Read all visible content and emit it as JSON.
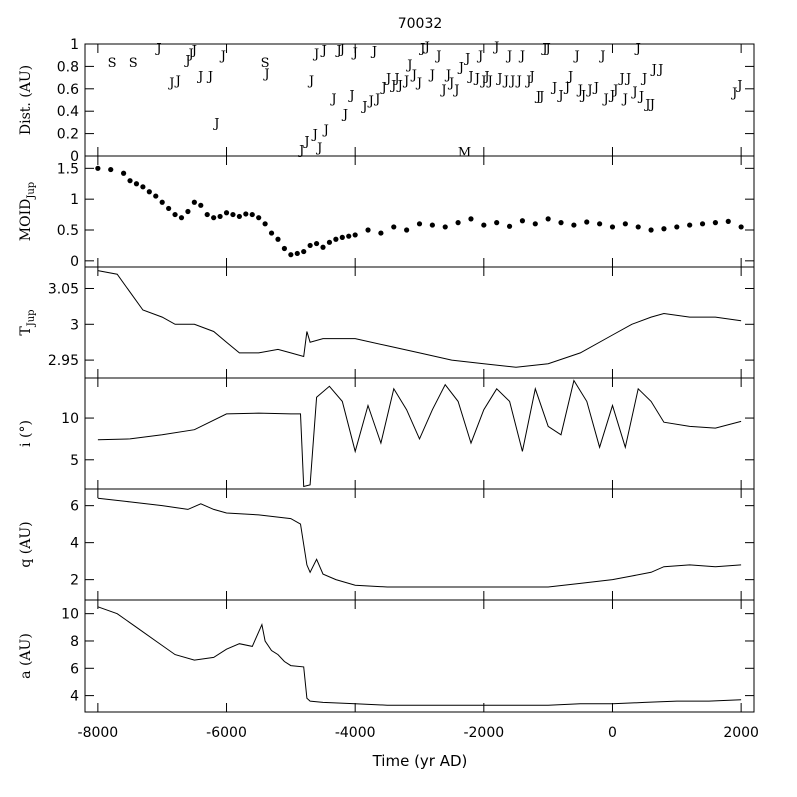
{
  "chart_data": {
    "type": "line",
    "title": "70032",
    "xlabel": "Time (yr AD)",
    "xlim": [
      -8200,
      2200
    ],
    "x_ticks": [
      -8000,
      -6000,
      -4000,
      -2000,
      0,
      2000
    ],
    "panels": [
      {
        "id": "dist",
        "type": "scatter",
        "ylabel": "Dist. (AU)",
        "ylim": [
          0,
          1
        ],
        "y_ticks": [
          0,
          0.2,
          0.4,
          0.6,
          0.8,
          1
        ],
        "y_tick_labels": [
          "0",
          "0.2",
          "0.4",
          "0.6",
          "0.8",
          "1"
        ],
        "encounters": [
          {
            "x": -7780,
            "y": 0.84,
            "body": "S"
          },
          {
            "x": -7450,
            "y": 0.84,
            "body": "S"
          },
          {
            "x": -7050,
            "y": 0.97,
            "body": "J"
          },
          {
            "x": -6850,
            "y": 0.66,
            "body": "J"
          },
          {
            "x": -6750,
            "y": 0.68,
            "body": "J"
          },
          {
            "x": -6600,
            "y": 0.86,
            "body": "J"
          },
          {
            "x": -6550,
            "y": 0.92,
            "body": "J"
          },
          {
            "x": -6500,
            "y": 0.95,
            "body": "J"
          },
          {
            "x": -6400,
            "y": 0.72,
            "body": "J"
          },
          {
            "x": -6250,
            "y": 0.72,
            "body": "J"
          },
          {
            "x": -6150,
            "y": 0.3,
            "body": "J"
          },
          {
            "x": -6050,
            "y": 0.9,
            "body": "J"
          },
          {
            "x": -5400,
            "y": 0.84,
            "body": "S"
          },
          {
            "x": -5370,
            "y": 0.74,
            "body": "J"
          },
          {
            "x": -4830,
            "y": 0.06,
            "body": "J"
          },
          {
            "x": -4750,
            "y": 0.14,
            "body": "J"
          },
          {
            "x": -4680,
            "y": 0.68,
            "body": "J"
          },
          {
            "x": -4620,
            "y": 0.2,
            "body": "J"
          },
          {
            "x": -4600,
            "y": 0.92,
            "body": "J"
          },
          {
            "x": -4550,
            "y": 0.08,
            "body": "J"
          },
          {
            "x": -4480,
            "y": 0.95,
            "body": "J"
          },
          {
            "x": -4450,
            "y": 0.24,
            "body": "J"
          },
          {
            "x": -4330,
            "y": 0.52,
            "body": "J"
          },
          {
            "x": -4250,
            "y": 0.95,
            "body": "J"
          },
          {
            "x": -4200,
            "y": 0.96,
            "body": "J"
          },
          {
            "x": -4150,
            "y": 0.38,
            "body": "J"
          },
          {
            "x": -4050,
            "y": 0.55,
            "body": "J"
          },
          {
            "x": -4000,
            "y": 0.93,
            "body": "J"
          },
          {
            "x": -3850,
            "y": 0.45,
            "body": "J"
          },
          {
            "x": -3750,
            "y": 0.5,
            "body": "J"
          },
          {
            "x": -3700,
            "y": 0.94,
            "body": "J"
          },
          {
            "x": -3650,
            "y": 0.52,
            "body": "J"
          },
          {
            "x": -3550,
            "y": 0.62,
            "body": "J"
          },
          {
            "x": -3480,
            "y": 0.7,
            "body": "J"
          },
          {
            "x": -3400,
            "y": 0.64,
            "body": "J"
          },
          {
            "x": -3350,
            "y": 0.7,
            "body": "J"
          },
          {
            "x": -3300,
            "y": 0.64,
            "body": "J"
          },
          {
            "x": -3200,
            "y": 0.68,
            "body": "J"
          },
          {
            "x": -3150,
            "y": 0.82,
            "body": "J"
          },
          {
            "x": -3080,
            "y": 0.73,
            "body": "J"
          },
          {
            "x": -3000,
            "y": 0.66,
            "body": "J"
          },
          {
            "x": -2950,
            "y": 0.97,
            "body": "J"
          },
          {
            "x": -2880,
            "y": 0.98,
            "body": "J"
          },
          {
            "x": -2800,
            "y": 0.73,
            "body": "J"
          },
          {
            "x": -2700,
            "y": 0.9,
            "body": "J"
          },
          {
            "x": -2620,
            "y": 0.6,
            "body": "J"
          },
          {
            "x": -2550,
            "y": 0.73,
            "body": "J"
          },
          {
            "x": -2500,
            "y": 0.66,
            "body": "J"
          },
          {
            "x": -2420,
            "y": 0.6,
            "body": "J"
          },
          {
            "x": -2350,
            "y": 0.8,
            "body": "J"
          },
          {
            "x": -2300,
            "y": 0.04,
            "body": "M"
          },
          {
            "x": -2250,
            "y": 0.88,
            "body": "J"
          },
          {
            "x": -2200,
            "y": 0.72,
            "body": "J"
          },
          {
            "x": -2100,
            "y": 0.7,
            "body": "J"
          },
          {
            "x": -2050,
            "y": 0.9,
            "body": "J"
          },
          {
            "x": -2000,
            "y": 0.68,
            "body": "J"
          },
          {
            "x": -1950,
            "y": 0.72,
            "body": "J"
          },
          {
            "x": -1900,
            "y": 0.68,
            "body": "J"
          },
          {
            "x": -1800,
            "y": 0.98,
            "body": "J"
          },
          {
            "x": -1750,
            "y": 0.7,
            "body": "J"
          },
          {
            "x": -1650,
            "y": 0.68,
            "body": "J"
          },
          {
            "x": -1600,
            "y": 0.9,
            "body": "J"
          },
          {
            "x": -1550,
            "y": 0.68,
            "body": "J"
          },
          {
            "x": -1450,
            "y": 0.68,
            "body": "J"
          },
          {
            "x": -1400,
            "y": 0.9,
            "body": "J"
          },
          {
            "x": -1300,
            "y": 0.68,
            "body": "J"
          },
          {
            "x": -1250,
            "y": 0.72,
            "body": "J"
          },
          {
            "x": -1150,
            "y": 0.54,
            "body": "J"
          },
          {
            "x": -1100,
            "y": 0.54,
            "body": "J"
          },
          {
            "x": -1050,
            "y": 0.97,
            "body": "J"
          },
          {
            "x": -1000,
            "y": 0.97,
            "body": "J"
          },
          {
            "x": -900,
            "y": 0.62,
            "body": "J"
          },
          {
            "x": -800,
            "y": 0.55,
            "body": "J"
          },
          {
            "x": -700,
            "y": 0.62,
            "body": "J"
          },
          {
            "x": -650,
            "y": 0.72,
            "body": "J"
          },
          {
            "x": -550,
            "y": 0.9,
            "body": "J"
          },
          {
            "x": -500,
            "y": 0.6,
            "body": "J"
          },
          {
            "x": -450,
            "y": 0.55,
            "body": "J"
          },
          {
            "x": -350,
            "y": 0.6,
            "body": "J"
          },
          {
            "x": -250,
            "y": 0.62,
            "body": "J"
          },
          {
            "x": -150,
            "y": 0.9,
            "body": "J"
          },
          {
            "x": -100,
            "y": 0.52,
            "body": "J"
          },
          {
            "x": 0,
            "y": 0.55,
            "body": "J"
          },
          {
            "x": 50,
            "y": 0.6,
            "body": "J"
          },
          {
            "x": 150,
            "y": 0.7,
            "body": "J"
          },
          {
            "x": 200,
            "y": 0.52,
            "body": "J"
          },
          {
            "x": 250,
            "y": 0.7,
            "body": "J"
          },
          {
            "x": 350,
            "y": 0.58,
            "body": "J"
          },
          {
            "x": 400,
            "y": 0.97,
            "body": "J"
          },
          {
            "x": 450,
            "y": 0.54,
            "body": "J"
          },
          {
            "x": 500,
            "y": 0.7,
            "body": "J"
          },
          {
            "x": 550,
            "y": 0.47,
            "body": "J"
          },
          {
            "x": 620,
            "y": 0.47,
            "body": "J"
          },
          {
            "x": 650,
            "y": 0.78,
            "body": "J"
          },
          {
            "x": 750,
            "y": 0.78,
            "body": "J"
          },
          {
            "x": 1900,
            "y": 0.57,
            "body": "J"
          },
          {
            "x": 1980,
            "y": 0.64,
            "body": "J"
          }
        ]
      },
      {
        "id": "moid",
        "type": "scatter",
        "ylabel": "MOID",
        "ylabel_sub": "Jup",
        "ylim": [
          -0.1,
          1.7
        ],
        "y_ticks": [
          0,
          0.5,
          1,
          1.5
        ],
        "y_tick_labels": [
          "0",
          "0.5",
          "1",
          "1.5"
        ],
        "x": [
          -8000,
          -7800,
          -7600,
          -7500,
          -7400,
          -7300,
          -7200,
          -7100,
          -7000,
          -6900,
          -6800,
          -6700,
          -6600,
          -6500,
          -6400,
          -6300,
          -6200,
          -6100,
          -6000,
          -5900,
          -5800,
          -5700,
          -5600,
          -5500,
          -5400,
          -5300,
          -5200,
          -5100,
          -5000,
          -4900,
          -4800,
          -4700,
          -4600,
          -4500,
          -4400,
          -4300,
          -4200,
          -4100,
          -4000,
          -3800,
          -3600,
          -3400,
          -3200,
          -3000,
          -2800,
          -2600,
          -2400,
          -2200,
          -2000,
          -1800,
          -1600,
          -1400,
          -1200,
          -1000,
          -800,
          -600,
          -400,
          -200,
          0,
          200,
          400,
          600,
          800,
          1000,
          1200,
          1400,
          1600,
          1800,
          2000
        ],
        "values": [
          1.5,
          1.48,
          1.42,
          1.3,
          1.25,
          1.2,
          1.12,
          1.05,
          0.95,
          0.85,
          0.75,
          0.7,
          0.8,
          0.95,
          0.9,
          0.75,
          0.7,
          0.72,
          0.78,
          0.75,
          0.72,
          0.76,
          0.75,
          0.7,
          0.6,
          0.45,
          0.35,
          0.2,
          0.1,
          0.12,
          0.15,
          0.25,
          0.28,
          0.22,
          0.3,
          0.35,
          0.38,
          0.4,
          0.42,
          0.5,
          0.45,
          0.55,
          0.5,
          0.6,
          0.58,
          0.55,
          0.62,
          0.68,
          0.58,
          0.62,
          0.56,
          0.65,
          0.6,
          0.68,
          0.62,
          0.58,
          0.63,
          0.6,
          0.55,
          0.6,
          0.55,
          0.5,
          0.52,
          0.55,
          0.58,
          0.6,
          0.62,
          0.64,
          0.55
        ]
      },
      {
        "id": "tjup",
        "type": "line",
        "ylabel": "T",
        "ylabel_sub": "Jup",
        "ylim": [
          2.925,
          3.08
        ],
        "y_ticks": [
          2.95,
          3,
          3.05
        ],
        "y_tick_labels": [
          "2.95",
          "3",
          "3.05"
        ],
        "x": [
          -8000,
          -7700,
          -7500,
          -7300,
          -7000,
          -6800,
          -6500,
          -6200,
          -6000,
          -5800,
          -5500,
          -5200,
          -5000,
          -4800,
          -4750,
          -4700,
          -4500,
          -4000,
          -3500,
          -3000,
          -2500,
          -2000,
          -1500,
          -1000,
          -500,
          0,
          300,
          600,
          800,
          1200,
          1600,
          2000
        ],
        "values": [
          3.075,
          3.07,
          3.045,
          3.02,
          3.01,
          3.0,
          3.0,
          2.99,
          2.975,
          2.96,
          2.96,
          2.965,
          2.96,
          2.955,
          2.99,
          2.975,
          2.98,
          2.98,
          2.97,
          2.96,
          2.95,
          2.945,
          2.94,
          2.945,
          2.96,
          2.985,
          3.0,
          3.01,
          3.015,
          3.01,
          3.01,
          3.005
        ]
      },
      {
        "id": "incl",
        "type": "line",
        "ylabel": "i (°)",
        "ylim": [
          1.5,
          14.8
        ],
        "y_ticks": [
          5,
          10
        ],
        "y_tick_labels": [
          "5",
          "10"
        ],
        "x": [
          -8000,
          -7500,
          -7000,
          -6500,
          -6000,
          -5500,
          -5000,
          -4850,
          -4800,
          -4700,
          -4600,
          -4400,
          -4200,
          -4000,
          -3800,
          -3600,
          -3400,
          -3200,
          -3000,
          -2800,
          -2600,
          -2400,
          -2200,
          -2000,
          -1800,
          -1600,
          -1400,
          -1200,
          -1000,
          -800,
          -600,
          -400,
          -200,
          0,
          200,
          400,
          600,
          800,
          1200,
          1600,
          2000
        ],
        "values": [
          7.4,
          7.5,
          8.0,
          8.6,
          10.5,
          10.6,
          10.5,
          10.5,
          1.8,
          2.0,
          12.5,
          13.8,
          12.0,
          6.0,
          11.5,
          7.0,
          13.5,
          11.0,
          7.5,
          11.0,
          14.0,
          12.0,
          7.0,
          11.0,
          13.5,
          12.0,
          6.0,
          13.5,
          9.0,
          8.0,
          14.5,
          12.0,
          6.5,
          11.5,
          6.5,
          13.5,
          12.0,
          9.5,
          9.0,
          8.8,
          9.6
        ]
      },
      {
        "id": "q",
        "type": "line",
        "ylabel": "q (AU)",
        "ylim": [
          0.9,
          6.9
        ],
        "y_ticks": [
          2,
          4,
          6
        ],
        "y_tick_labels": [
          "2",
          "4",
          "6"
        ],
        "x": [
          -8000,
          -7500,
          -7000,
          -6600,
          -6400,
          -6200,
          -6000,
          -5500,
          -5000,
          -4850,
          -4750,
          -4700,
          -4600,
          -4500,
          -4300,
          -4000,
          -3500,
          -3000,
          -2500,
          -2000,
          -1500,
          -1000,
          -500,
          0,
          300,
          600,
          800,
          1200,
          1600,
          2000
        ],
        "values": [
          6.4,
          6.2,
          6.0,
          5.8,
          6.1,
          5.8,
          5.6,
          5.5,
          5.3,
          5.0,
          2.8,
          2.4,
          3.1,
          2.3,
          2.0,
          1.7,
          1.6,
          1.6,
          1.6,
          1.6,
          1.6,
          1.6,
          1.8,
          2.0,
          2.2,
          2.4,
          2.7,
          2.8,
          2.7,
          2.8
        ]
      },
      {
        "id": "a",
        "type": "line",
        "ylabel": "a (AU)",
        "ylim": [
          2.8,
          11.0
        ],
        "y_ticks": [
          4,
          6,
          8,
          10
        ],
        "y_tick_labels": [
          "4",
          "6",
          "8",
          "10"
        ],
        "x": [
          -8000,
          -7700,
          -7400,
          -7100,
          -6800,
          -6500,
          -6200,
          -6000,
          -5800,
          -5600,
          -5450,
          -5400,
          -5300,
          -5200,
          -5100,
          -5000,
          -4800,
          -4750,
          -4700,
          -4500,
          -4000,
          -3500,
          -3000,
          -2500,
          -2000,
          -1500,
          -1000,
          -500,
          0,
          500,
          1000,
          1500,
          2000
        ],
        "values": [
          10.5,
          10.0,
          9.0,
          8.0,
          7.0,
          6.6,
          6.8,
          7.4,
          7.8,
          7.6,
          9.2,
          8.0,
          7.3,
          7.0,
          6.5,
          6.2,
          6.1,
          3.8,
          3.6,
          3.5,
          3.4,
          3.3,
          3.3,
          3.3,
          3.3,
          3.3,
          3.3,
          3.4,
          3.4,
          3.5,
          3.6,
          3.6,
          3.7
        ]
      }
    ]
  }
}
